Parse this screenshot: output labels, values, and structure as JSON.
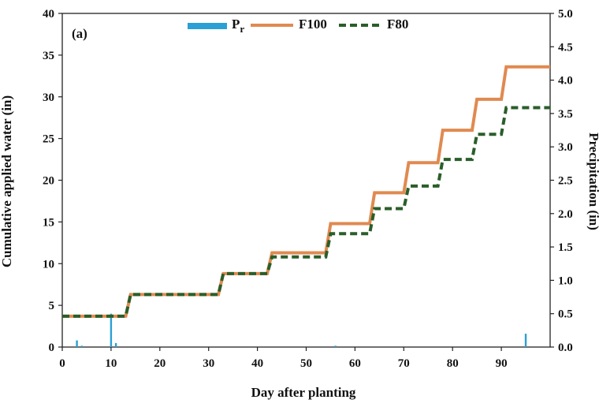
{
  "chart_data": {
    "type": "line",
    "panel_label": "(a)",
    "xlabel": "Day after planting",
    "ylabel": "Cumulative applied water (in)",
    "y2label": "Precipitation (in)",
    "xlim": [
      0,
      100
    ],
    "ylim": [
      0,
      40
    ],
    "y2lim": [
      0,
      5
    ],
    "xticks": [
      "0",
      "10",
      "20",
      "30",
      "40",
      "50",
      "60",
      "70",
      "80",
      "90"
    ],
    "yticks": [
      "0",
      "5",
      "10",
      "15",
      "20",
      "25",
      "30",
      "35",
      "40"
    ],
    "y2ticks": [
      "0.0",
      "0.5",
      "1.0",
      "1.5",
      "2.0",
      "2.5",
      "3.0",
      "3.5",
      "4.0",
      "4.5",
      "5.0"
    ],
    "grid": false,
    "legend_position": "top-center",
    "legend": [
      {
        "key": "pr",
        "label": "P",
        "subscript": "r"
      },
      {
        "key": "f100",
        "label": "F100"
      },
      {
        "key": "f80",
        "label": "F80"
      }
    ],
    "colors": {
      "pr": "#2aa0d4",
      "f100": "#e08a50",
      "f80": "#2a5e2a"
    },
    "series": [
      {
        "name": "F100",
        "axis": "left",
        "style": "solid",
        "x": [
          0,
          13,
          14,
          32,
          33,
          42,
          43,
          54,
          55,
          63,
          64,
          70,
          71,
          77,
          78,
          84,
          85,
          90,
          91,
          100
        ],
        "y": [
          3.7,
          3.7,
          6.3,
          6.3,
          8.8,
          8.8,
          11.3,
          11.3,
          14.8,
          14.8,
          18.5,
          18.5,
          22.1,
          22.1,
          26.0,
          26.0,
          29.7,
          29.7,
          33.6,
          33.6
        ]
      },
      {
        "name": "F80",
        "axis": "left",
        "style": "dashed",
        "x": [
          0,
          13,
          14,
          32,
          33,
          42,
          43,
          54,
          55,
          63,
          64,
          70,
          71,
          77,
          78,
          84,
          85,
          90,
          91,
          100
        ],
        "y": [
          3.7,
          3.7,
          6.3,
          6.3,
          8.8,
          8.8,
          10.8,
          10.8,
          13.6,
          13.6,
          16.6,
          16.6,
          19.3,
          19.3,
          22.5,
          22.5,
          25.5,
          25.5,
          28.7,
          28.7
        ]
      }
    ],
    "precipitation": {
      "name": "P",
      "axis": "right",
      "x": [
        3,
        4,
        10,
        11,
        56,
        95
      ],
      "y": [
        0.1,
        0.02,
        0.5,
        0.06,
        0.02,
        0.2
      ]
    }
  }
}
